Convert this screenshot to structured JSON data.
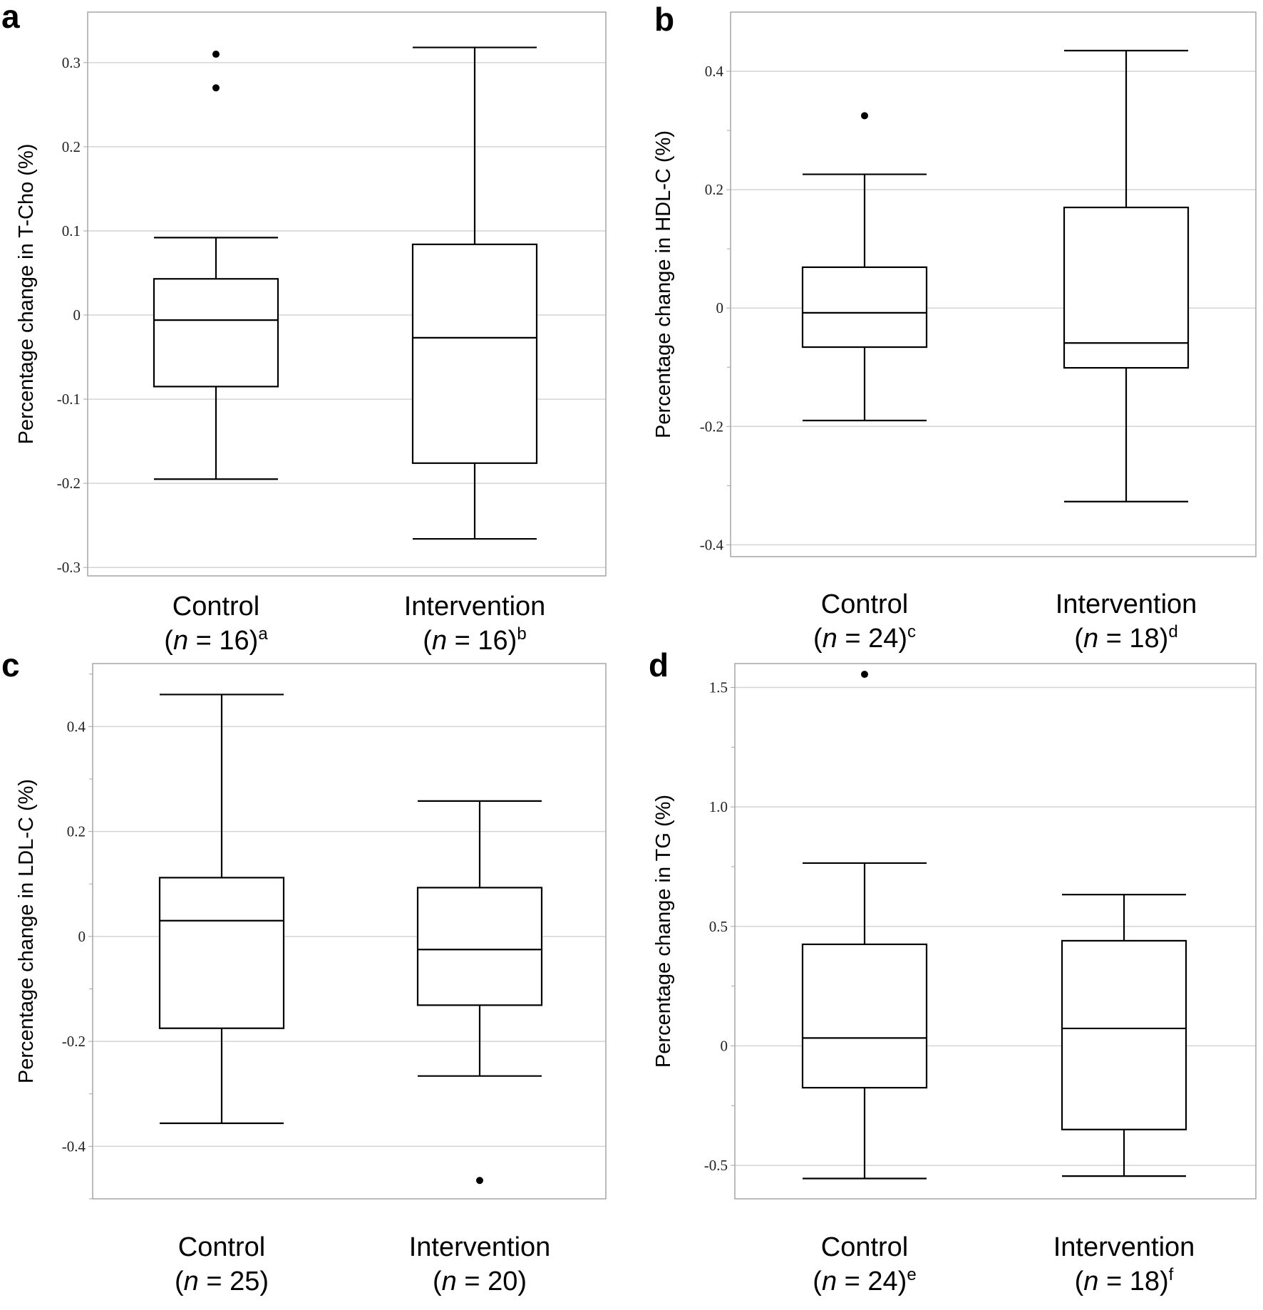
{
  "chart_data": [
    {
      "type": "box",
      "panel_letter": "a",
      "ylabel": "Percentage change in T-Cho (%)",
      "ylim": [
        -0.31,
        0.36
      ],
      "yticks": [
        0.3,
        0.2,
        0.1,
        0,
        -0.1,
        -0.2,
        -0.3
      ],
      "ytick_labels": [
        "0.3",
        "0.2",
        "0.1",
        "0",
        "-0.1",
        "-0.2",
        "-0.3"
      ],
      "minor_ticks": [],
      "grid": true,
      "categories": [
        {
          "name": "Control",
          "n_label": "(n = 16)",
          "n": 16,
          "superscript": "a",
          "whisker_high": 0.092,
          "q3": 0.043,
          "median": -0.006,
          "q1": -0.085,
          "whisker_low": -0.195,
          "outliers": [
            0.31,
            0.27
          ]
        },
        {
          "name": "Intervention",
          "n_label": "(n = 16)",
          "n": 16,
          "superscript": "b",
          "whisker_high": 0.318,
          "q3": 0.084,
          "median": -0.027,
          "q1": -0.176,
          "whisker_low": -0.266,
          "outliers": []
        }
      ]
    },
    {
      "type": "box",
      "panel_letter": "b",
      "ylabel": "Percentage change in HDL-C (%)",
      "ylim": [
        -0.42,
        0.5
      ],
      "yticks": [
        0.4,
        0.2,
        0,
        -0.2,
        -0.4
      ],
      "ytick_labels": [
        "0.4",
        "0.2",
        "0",
        "-0.2",
        "-0.4"
      ],
      "minor_ticks": [
        0.3,
        0.1,
        -0.1,
        -0.3
      ],
      "grid": true,
      "categories": [
        {
          "name": "Control",
          "n_label": "(n = 24)",
          "n": 24,
          "superscript": "c",
          "whisker_high": 0.226,
          "q3": 0.069,
          "median": -0.008,
          "q1": -0.066,
          "whisker_low": -0.19,
          "outliers": [
            0.325
          ]
        },
        {
          "name": "Intervention",
          "n_label": "(n = 18)",
          "n": 18,
          "superscript": "d",
          "whisker_high": 0.435,
          "q3": 0.17,
          "median": -0.059,
          "q1": -0.101,
          "whisker_low": -0.327,
          "outliers": []
        }
      ]
    },
    {
      "type": "box",
      "panel_letter": "c",
      "ylabel": "Percentage change in LDL-C (%)",
      "ylim": [
        -0.5,
        0.52
      ],
      "yticks": [
        0.4,
        0.2,
        0,
        -0.2,
        -0.4
      ],
      "ytick_labels": [
        "0.4",
        "0.2",
        "0",
        "-0.2",
        "-0.4"
      ],
      "minor_ticks": [
        0.5,
        0.3,
        0.1,
        -0.1,
        -0.3,
        -0.5
      ],
      "grid": true,
      "categories": [
        {
          "name": "Control",
          "n_label": "(n = 25)",
          "n": 25,
          "superscript": "",
          "whisker_high": 0.461,
          "q3": 0.112,
          "median": 0.03,
          "q1": -0.175,
          "whisker_low": -0.356,
          "outliers": []
        },
        {
          "name": "Intervention",
          "n_label": "(n = 20)",
          "n": 20,
          "superscript": "",
          "whisker_high": 0.258,
          "q3": 0.093,
          "median": -0.025,
          "q1": -0.131,
          "whisker_low": -0.266,
          "outliers": [
            -0.465
          ]
        }
      ]
    },
    {
      "type": "box",
      "panel_letter": "d",
      "ylabel": "Percentage change in TG (%)",
      "ylim": [
        -0.64,
        1.6
      ],
      "yticks": [
        1.5,
        1.0,
        0.5,
        0,
        -0.5
      ],
      "ytick_labels": [
        "1.5",
        "1.0",
        "0.5",
        "0",
        "-0.5"
      ],
      "minor_ticks": [
        1.25,
        0.75,
        0.25,
        -0.25
      ],
      "grid": true,
      "categories": [
        {
          "name": "Control",
          "n_label": "(n = 24)",
          "n": 24,
          "superscript": "e",
          "whisker_high": 0.765,
          "q3": 0.425,
          "median": 0.033,
          "q1": -0.175,
          "whisker_low": -0.555,
          "outliers": [
            1.555
          ]
        },
        {
          "name": "Intervention",
          "n_label": "(n = 18)",
          "n": 18,
          "superscript": "f",
          "whisker_high": 0.633,
          "q3": 0.44,
          "median": 0.073,
          "q1": -0.35,
          "whisker_low": -0.545,
          "outliers": []
        }
      ]
    }
  ],
  "colors": {
    "box_stroke": "#000000",
    "grid": "#d4d4d4",
    "frame": "#a6a6a6",
    "outlier": "#000000"
  }
}
